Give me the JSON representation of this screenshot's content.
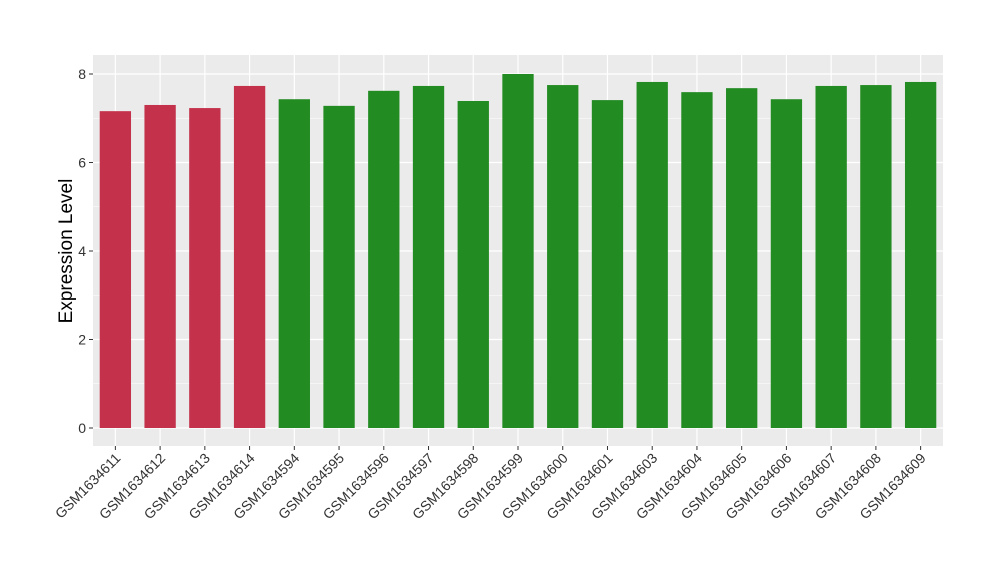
{
  "chart_data": {
    "type": "bar",
    "title": "",
    "xlabel": "",
    "ylabel": "Expression Level",
    "ylim": [
      0,
      8.4
    ],
    "yticks": [
      0,
      2,
      4,
      6,
      8
    ],
    "grid": true,
    "categories": [
      "GSM1634611",
      "GSM1634612",
      "GSM1634613",
      "GSM1634614",
      "GSM1634594",
      "GSM1634595",
      "GSM1634596",
      "GSM1634597",
      "GSM1634598",
      "GSM1634599",
      "GSM1634600",
      "GSM1634601",
      "GSM1634603",
      "GSM1634604",
      "GSM1634605",
      "GSM1634606",
      "GSM1634607",
      "GSM1634608",
      "GSM1634609"
    ],
    "values": [
      7.16,
      7.3,
      7.23,
      7.73,
      7.43,
      7.28,
      7.62,
      7.73,
      7.39,
      8.0,
      7.75,
      7.41,
      7.82,
      7.59,
      7.68,
      7.43,
      7.73,
      7.75,
      7.82
    ],
    "groups": [
      "red",
      "red",
      "red",
      "red",
      "green",
      "green",
      "green",
      "green",
      "green",
      "green",
      "green",
      "green",
      "green",
      "green",
      "green",
      "green",
      "green",
      "green",
      "green"
    ],
    "colors": {
      "red": "#C3314A",
      "green": "#228B22",
      "panel": "#EBEBEB",
      "grid": "#FFFFFF"
    }
  }
}
